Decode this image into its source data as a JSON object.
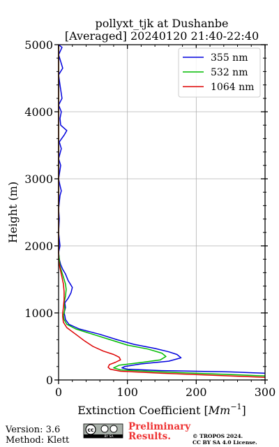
{
  "chart_data": {
    "type": "line",
    "title_line1": "pollyxt_tjk at Dushanbe",
    "title_line2": "[Averaged] 20240120 21:40-22:40",
    "xlabel_prefix": "Extinction Coefficient ",
    "xlabel_unit_base": "Mm",
    "xlabel_unit_exp": "−1",
    "ylabel": "Height (m)",
    "xlim": [
      0,
      300
    ],
    "ylim": [
      0,
      5000
    ],
    "x_ticks": [
      "0",
      "100",
      "200",
      "300"
    ],
    "y_ticks": [
      "0",
      "1000",
      "2000",
      "3000",
      "4000",
      "5000"
    ],
    "x_tick_values": [
      0,
      100,
      200,
      300
    ],
    "y_tick_values": [
      0,
      1000,
      2000,
      3000,
      4000,
      5000
    ],
    "grid": true,
    "legend_position": "top-right",
    "series": [
      {
        "name": "355 nm",
        "color": "#0000dd",
        "points": [
          [
            300,
            100
          ],
          [
            250,
            120
          ],
          [
            150,
            140
          ],
          [
            100,
            160
          ],
          [
            92,
            180
          ],
          [
            96,
            200
          ],
          [
            120,
            240
          ],
          [
            160,
            280
          ],
          [
            178,
            330
          ],
          [
            172,
            380
          ],
          [
            160,
            420
          ],
          [
            140,
            470
          ],
          [
            110,
            530
          ],
          [
            85,
            600
          ],
          [
            60,
            680
          ],
          [
            30,
            760
          ],
          [
            15,
            830
          ],
          [
            10,
            900
          ],
          [
            9,
            960
          ],
          [
            8,
            1000
          ],
          [
            10,
            1080
          ],
          [
            9,
            1150
          ],
          [
            14,
            1220
          ],
          [
            18,
            1300
          ],
          [
            20,
            1380
          ],
          [
            17,
            1430
          ],
          [
            14,
            1480
          ],
          [
            12,
            1530
          ],
          [
            10,
            1580
          ],
          [
            6,
            1650
          ],
          [
            3,
            1720
          ],
          [
            1,
            1800
          ],
          [
            0,
            1900
          ],
          [
            2,
            2000
          ],
          [
            1,
            2100
          ],
          [
            0,
            2200
          ],
          [
            1,
            2400
          ],
          [
            0,
            2550
          ],
          [
            2,
            2750
          ],
          [
            4,
            2820
          ],
          [
            2,
            2900
          ],
          [
            0,
            3000
          ],
          [
            3,
            3200
          ],
          [
            0,
            3300
          ],
          [
            4,
            3450
          ],
          [
            1,
            3550
          ],
          [
            8,
            3650
          ],
          [
            12,
            3720
          ],
          [
            3,
            3800
          ],
          [
            2,
            3900
          ],
          [
            4,
            4000
          ],
          [
            0,
            4100
          ],
          [
            5,
            4200
          ],
          [
            2,
            4400
          ],
          [
            0,
            4550
          ],
          [
            6,
            4650
          ],
          [
            3,
            4750
          ],
          [
            0,
            4850
          ],
          [
            5,
            4960
          ],
          [
            0,
            5000
          ]
        ]
      },
      {
        "name": "532 nm",
        "color": "#00bb00",
        "points": [
          [
            300,
            60
          ],
          [
            250,
            80
          ],
          [
            150,
            120
          ],
          [
            90,
            150
          ],
          [
            80,
            180
          ],
          [
            88,
            220
          ],
          [
            120,
            260
          ],
          [
            148,
            300
          ],
          [
            156,
            350
          ],
          [
            150,
            400
          ],
          [
            130,
            460
          ],
          [
            100,
            520
          ],
          [
            75,
            600
          ],
          [
            50,
            680
          ],
          [
            25,
            760
          ],
          [
            12,
            830
          ],
          [
            8,
            900
          ],
          [
            7,
            960
          ],
          [
            8,
            1000
          ],
          [
            9,
            1060
          ],
          [
            8,
            1150
          ],
          [
            10,
            1250
          ],
          [
            11,
            1350
          ],
          [
            10,
            1430
          ],
          [
            8,
            1500
          ],
          [
            5,
            1600
          ],
          [
            2,
            1700
          ],
          [
            1,
            1800
          ],
          [
            0,
            1900
          ],
          [
            0,
            5000
          ]
        ]
      },
      {
        "name": "1064 nm",
        "color": "#dd0000",
        "points": [
          [
            300,
            40
          ],
          [
            250,
            60
          ],
          [
            150,
            100
          ],
          [
            90,
            130
          ],
          [
            75,
            160
          ],
          [
            72,
            190
          ],
          [
            74,
            230
          ],
          [
            82,
            260
          ],
          [
            90,
            300
          ],
          [
            88,
            340
          ],
          [
            80,
            380
          ],
          [
            65,
            430
          ],
          [
            50,
            500
          ],
          [
            38,
            580
          ],
          [
            25,
            680
          ],
          [
            12,
            780
          ],
          [
            7,
            860
          ],
          [
            6,
            940
          ],
          [
            6,
            1000
          ],
          [
            7,
            1080
          ],
          [
            8,
            1200
          ],
          [
            8,
            1320
          ],
          [
            7,
            1430
          ],
          [
            5,
            1530
          ],
          [
            3,
            1620
          ],
          [
            1,
            1720
          ],
          [
            0,
            1800
          ],
          [
            0,
            5000
          ]
        ]
      }
    ]
  },
  "footer": {
    "version": "Version: 3.6",
    "method": "Method: Klett",
    "cc_label": "cc",
    "cc_sub": "BY  SA",
    "preliminary_line1": "Preliminary",
    "preliminary_line2": "Results.",
    "copyright_line1": "© TROPOS 2024.",
    "copyright_line2": "CC BY SA 4.0 License."
  }
}
